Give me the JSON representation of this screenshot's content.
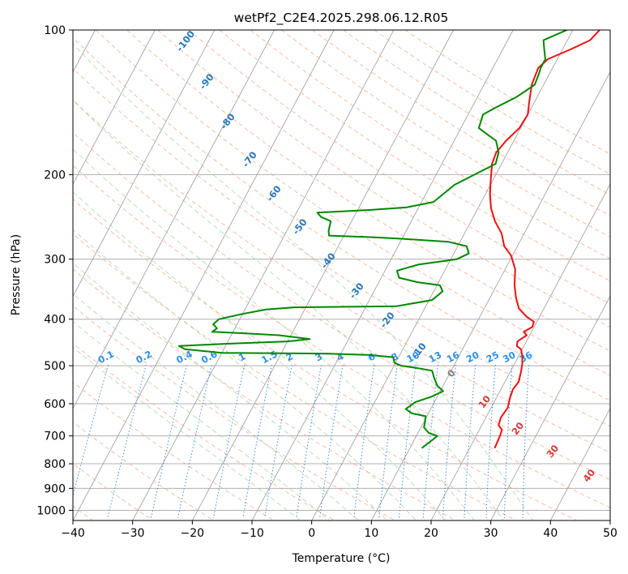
{
  "chart_data": {
    "type": "line",
    "title": "wetPf2_C2E4.2025.298.06.12.R05",
    "xlabel": "Temperature (°C)",
    "ylabel": "Pressure (hPa)",
    "xlim": [
      -40,
      50
    ],
    "ylim": [
      1050,
      100
    ],
    "y_scale": "log",
    "grid": true,
    "x_ticks": [
      -40,
      -30,
      -20,
      -10,
      0,
      10,
      20,
      30,
      40,
      50
    ],
    "x_tick_labels": [
      "−40",
      "−30",
      "−20",
      "−10",
      "0",
      "10",
      "20",
      "30",
      "40",
      "50"
    ],
    "y_ticks": [
      100,
      200,
      300,
      400,
      500,
      600,
      700,
      800,
      900,
      1000
    ],
    "y_tick_labels": [
      "100",
      "200",
      "300",
      "400",
      "500",
      "600",
      "700",
      "800",
      "900",
      "1000"
    ],
    "series": [
      {
        "role": "temperature",
        "color": "#ee1111",
        "points": [
          [
            24.2,
            742
          ],
          [
            24.0,
            700
          ],
          [
            23.8,
            680
          ],
          [
            22.8,
            665
          ],
          [
            22.5,
            640
          ],
          [
            22.8,
            612
          ],
          [
            22.3,
            585
          ],
          [
            22.0,
            560
          ],
          [
            22.3,
            540
          ],
          [
            21.8,
            515
          ],
          [
            21.3,
            495
          ],
          [
            20.5,
            475
          ],
          [
            19.8,
            462
          ],
          [
            18.8,
            455
          ],
          [
            18.5,
            445
          ],
          [
            19.5,
            432
          ],
          [
            18.7,
            425
          ],
          [
            19.7,
            415
          ],
          [
            19.5,
            405
          ],
          [
            17.8,
            395
          ],
          [
            15.8,
            380
          ],
          [
            14.3,
            360
          ],
          [
            13.0,
            340
          ],
          [
            11.7,
            315
          ],
          [
            9.8,
            295
          ],
          [
            7.8,
            282
          ],
          [
            6.2,
            265
          ],
          [
            4.0,
            250
          ],
          [
            2.2,
            235
          ],
          [
            0.8,
            220
          ],
          [
            -0.4,
            205
          ],
          [
            -1.6,
            190
          ],
          [
            -1.9,
            180
          ],
          [
            -1.3,
            170
          ],
          [
            -0.2,
            160
          ],
          [
            0.0,
            150
          ],
          [
            -1.0,
            140
          ],
          [
            -2.0,
            130
          ],
          [
            -2.4,
            120
          ],
          [
            -1.6,
            115
          ],
          [
            1.2,
            110
          ],
          [
            3.8,
            105
          ],
          [
            4.5,
            100
          ]
        ]
      },
      {
        "role": "dewpoint",
        "color": "#008800",
        "points": [
          [
            12.0,
            742
          ],
          [
            13.0,
            715
          ],
          [
            13.5,
            700
          ],
          [
            11.8,
            690
          ],
          [
            10.5,
            672
          ],
          [
            10.2,
            655
          ],
          [
            9.8,
            637
          ],
          [
            7.2,
            628
          ],
          [
            5.8,
            615
          ],
          [
            6.8,
            595
          ],
          [
            9.0,
            580
          ],
          [
            10.5,
            565
          ],
          [
            9.0,
            550
          ],
          [
            7.8,
            530
          ],
          [
            6.8,
            512
          ],
          [
            3.8,
            505
          ],
          [
            1.2,
            500
          ],
          [
            -0.2,
            493
          ],
          [
            -0.9,
            480
          ],
          [
            -5.0,
            475
          ],
          [
            -12.0,
            472
          ],
          [
            -20.0,
            471
          ],
          [
            -30.0,
            470
          ],
          [
            -36.5,
            462
          ],
          [
            -37.8,
            455
          ],
          [
            -30.0,
            450
          ],
          [
            -20.0,
            445
          ],
          [
            -16.5,
            440
          ],
          [
            -22.0,
            432
          ],
          [
            -28.0,
            428
          ],
          [
            -33.5,
            425
          ],
          [
            -33.0,
            418
          ],
          [
            -34.0,
            410
          ],
          [
            -33.5,
            400
          ],
          [
            -30.0,
            390
          ],
          [
            -26.5,
            382
          ],
          [
            -22.0,
            378
          ],
          [
            -5.0,
            376
          ],
          [
            0.5,
            365
          ],
          [
            1.5,
            350
          ],
          [
            0.5,
            340
          ],
          [
            -3.5,
            335
          ],
          [
            -7.0,
            328
          ],
          [
            -8.0,
            317
          ],
          [
            -5.0,
            308
          ],
          [
            1.0,
            300
          ],
          [
            2.5,
            292
          ],
          [
            1.5,
            282
          ],
          [
            -2.0,
            276
          ],
          [
            -10.0,
            272
          ],
          [
            -15.0,
            270
          ],
          [
            -22.5,
            268
          ],
          [
            -23.0,
            262
          ],
          [
            -23.5,
            250
          ],
          [
            -25.5,
            245
          ],
          [
            -26.5,
            240
          ],
          [
            -18.0,
            237
          ],
          [
            -12.0,
            234
          ],
          [
            -8.0,
            228
          ],
          [
            -6.0,
            210
          ],
          [
            -1.0,
            190
          ],
          [
            -1.5,
            180
          ],
          [
            -3.0,
            170
          ],
          [
            -5.0,
            165
          ],
          [
            -7.0,
            160
          ],
          [
            -7.5,
            150
          ],
          [
            -6.0,
            145
          ],
          [
            -3.5,
            138
          ],
          [
            -1.5,
            130
          ],
          [
            -1.8,
            123
          ],
          [
            -2.0,
            120
          ],
          [
            -2.0,
            115
          ],
          [
            -2.6,
            112
          ],
          [
            -3.0,
            110
          ],
          [
            -4.0,
            105
          ],
          [
            -1.0,
            100
          ]
        ]
      }
    ],
    "dry_adiabat_labels": [
      "-100",
      "-90",
      "-80",
      "-70",
      "-60",
      "-50",
      "-40",
      "-30",
      "-20",
      "-10",
      "0",
      "10",
      "20",
      "30",
      "40"
    ],
    "mixing_ratio_labels": [
      "0.1",
      "0.2",
      "0.4",
      "0.6",
      "1",
      "1.5",
      "2",
      "3",
      "4",
      "6",
      "8",
      "10",
      "13",
      "16",
      "20",
      "25",
      "30",
      "36"
    ]
  }
}
